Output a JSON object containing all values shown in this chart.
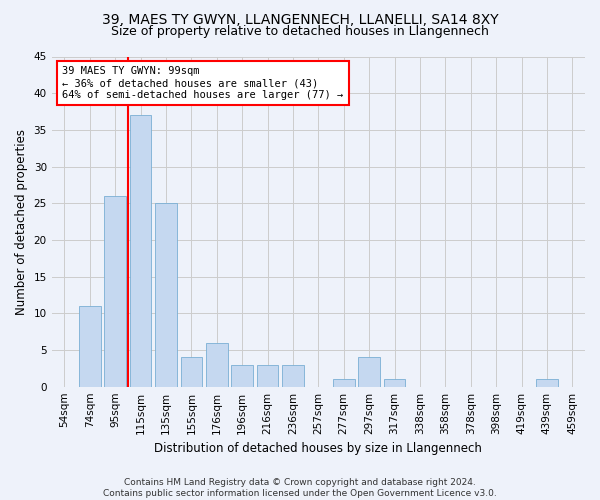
{
  "title": "39, MAES TY GWYN, LLANGENNECH, LLANELLI, SA14 8XY",
  "subtitle": "Size of property relative to detached houses in Llangennech",
  "xlabel": "Distribution of detached houses by size in Llangennech",
  "ylabel": "Number of detached properties",
  "categories": [
    "54sqm",
    "74sqm",
    "95sqm",
    "115sqm",
    "135sqm",
    "155sqm",
    "176sqm",
    "196sqm",
    "216sqm",
    "236sqm",
    "257sqm",
    "277sqm",
    "297sqm",
    "317sqm",
    "338sqm",
    "358sqm",
    "378sqm",
    "398sqm",
    "419sqm",
    "439sqm",
    "459sqm"
  ],
  "values": [
    0,
    11,
    26,
    37,
    25,
    4,
    6,
    3,
    3,
    3,
    0,
    1,
    4,
    1,
    0,
    0,
    0,
    0,
    0,
    1,
    0
  ],
  "bar_color": "#c5d8f0",
  "bar_edge_color": "#7aafd4",
  "red_line_x": 2.5,
  "annotation_text": "39 MAES TY GWYN: 99sqm\n← 36% of detached houses are smaller (43)\n64% of semi-detached houses are larger (77) →",
  "annotation_box_color": "white",
  "annotation_box_edge_color": "red",
  "ylim": [
    0,
    45
  ],
  "yticks": [
    0,
    5,
    10,
    15,
    20,
    25,
    30,
    35,
    40,
    45
  ],
  "grid_color": "#cccccc",
  "background_color": "#eef2fa",
  "axes_background": "#eef2fa",
  "footer": "Contains HM Land Registry data © Crown copyright and database right 2024.\nContains public sector information licensed under the Open Government Licence v3.0.",
  "title_fontsize": 10,
  "subtitle_fontsize": 9,
  "xlabel_fontsize": 8.5,
  "ylabel_fontsize": 8.5,
  "tick_fontsize": 7.5,
  "annotation_fontsize": 7.5,
  "footer_fontsize": 6.5
}
